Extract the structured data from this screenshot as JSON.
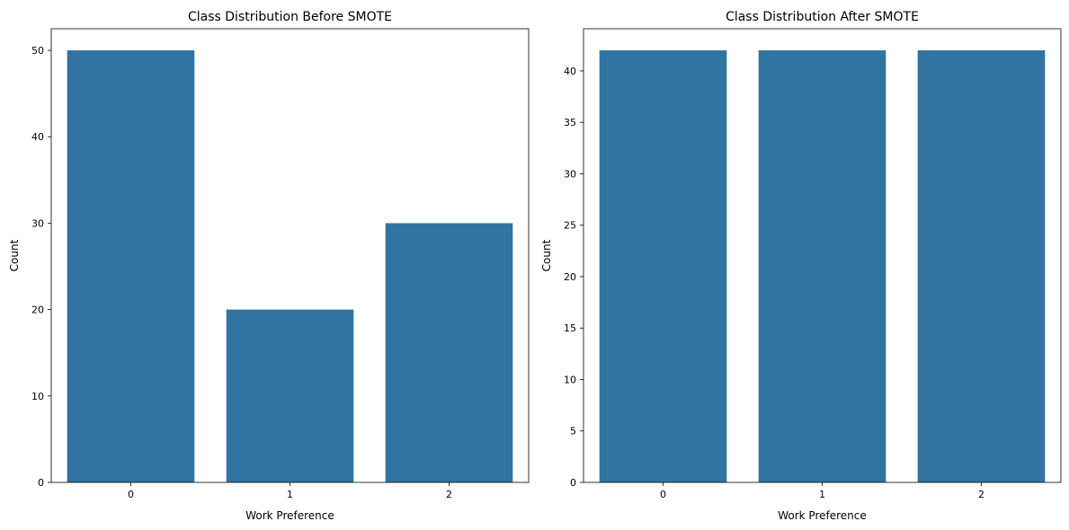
{
  "figure": {
    "background": "#ffffff",
    "bar_color": "#3274a1"
  },
  "chart_data": [
    {
      "type": "bar",
      "title": "Class Distribution Before SMOTE",
      "xlabel": "Work Preference",
      "ylabel": "Count",
      "categories": [
        "0",
        "1",
        "2"
      ],
      "values": [
        50,
        20,
        30
      ],
      "ylim": [
        0,
        52.5
      ],
      "yticks": [
        0,
        10,
        20,
        30,
        40,
        50
      ],
      "grid": false,
      "legend": false
    },
    {
      "type": "bar",
      "title": "Class Distribution After SMOTE",
      "xlabel": "Work Preference",
      "ylabel": "Count",
      "categories": [
        "0",
        "1",
        "2"
      ],
      "values": [
        42,
        42,
        42
      ],
      "ylim": [
        0,
        44.1
      ],
      "yticks": [
        0,
        5,
        10,
        15,
        20,
        25,
        30,
        35,
        40
      ],
      "grid": false,
      "legend": false
    }
  ]
}
